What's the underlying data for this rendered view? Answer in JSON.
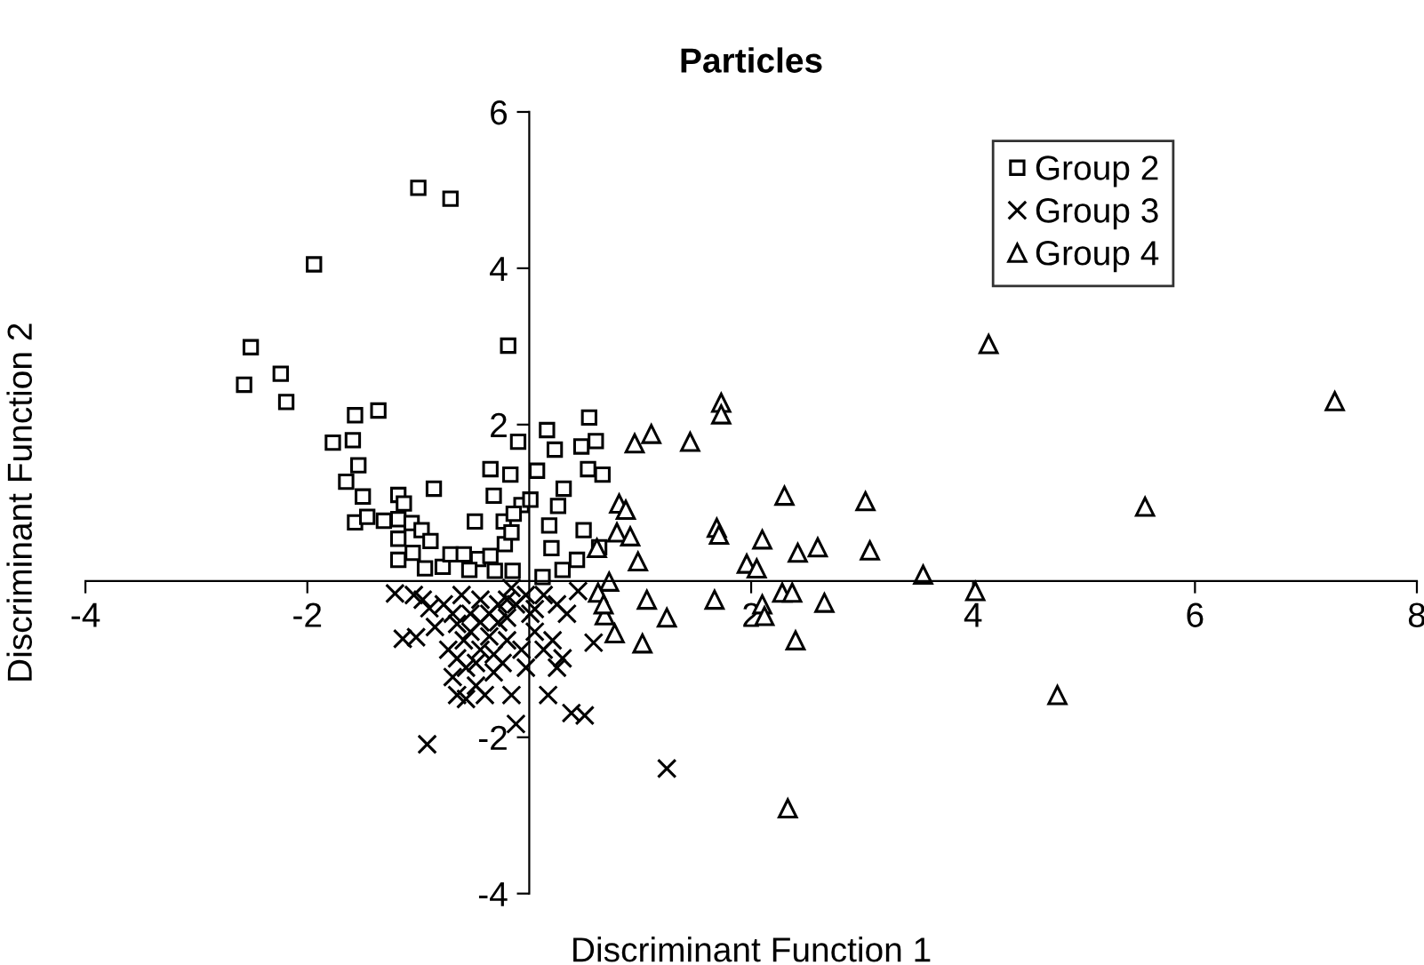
{
  "chart_data": {
    "type": "scatter",
    "title": "Particles",
    "xlabel": "Discriminant Function 1",
    "ylabel": "Discriminant Function 2",
    "xlim": [
      -4,
      8
    ],
    "ylim": [
      -4,
      6
    ],
    "xticks": [
      -4,
      -2,
      2,
      4,
      6,
      8
    ],
    "yticks": [
      -4,
      -2,
      2,
      4,
      6
    ],
    "grid": false,
    "legend": "top right",
    "series": [
      {
        "name": "Group 2",
        "color": "#000000",
        "marker": "square",
        "x": [
          -1.0,
          -0.71,
          -1.94,
          -2.51,
          -2.57,
          -2.24,
          -2.19,
          -0.19,
          -1.57,
          -1.36,
          -1.77,
          -1.59,
          -1.54,
          -1.65,
          -1.5,
          -1.57,
          -1.46,
          -1.31,
          -1.18,
          -1.13,
          -0.86,
          -1.18,
          -1.06,
          -1.18,
          -0.97,
          -0.89,
          -1.18,
          -1.05,
          -0.94,
          -0.78,
          -0.71,
          -0.59,
          -0.46,
          -0.35,
          -0.54,
          -0.31,
          -0.15,
          -0.49,
          -0.35,
          -0.32,
          -0.23,
          -0.22,
          -0.17,
          -0.1,
          -0.07,
          -0.16,
          -0.14,
          0.01,
          0.07,
          0.16,
          0.23,
          0.18,
          0.2,
          0.26,
          0.31,
          0.47,
          0.54,
          0.6,
          0.53,
          0.66,
          0.49,
          0.43,
          0.3,
          0.12,
          0.63
        ],
        "values": [
          5.03,
          4.89,
          4.05,
          2.99,
          2.51,
          2.65,
          2.29,
          3.01,
          2.12,
          2.18,
          1.77,
          1.8,
          1.48,
          1.27,
          1.08,
          0.75,
          0.82,
          0.77,
          1.1,
          0.99,
          1.18,
          0.79,
          0.74,
          0.54,
          0.65,
          0.51,
          0.27,
          0.36,
          0.16,
          0.18,
          0.34,
          0.34,
          0.28,
          0.32,
          0.14,
          0.13,
          0.13,
          0.76,
          1.43,
          1.09,
          0.76,
          0.47,
          1.36,
          1.78,
          0.97,
          0.62,
          0.86,
          1.04,
          1.41,
          1.93,
          1.68,
          0.71,
          0.42,
          0.96,
          1.18,
          1.72,
          2.09,
          1.79,
          1.43,
          1.36,
          0.65,
          0.27,
          0.14,
          0.05,
          0.43
        ]
      },
      {
        "name": "Group 3",
        "color": "#000000",
        "marker": "cross",
        "x": [
          -1.21,
          -1.14,
          -1.02,
          -1.04,
          -0.96,
          -0.9,
          -0.77,
          -0.69,
          -0.65,
          -0.53,
          -0.44,
          -0.36,
          -0.28,
          -0.2,
          -0.12,
          -0.03,
          0.13,
          0.25,
          0.34,
          0.44,
          0.21,
          0.3,
          0.17,
          0.38,
          0.5,
          1.24,
          -0.92,
          -0.12,
          -0.16,
          -0.57,
          -0.48,
          -0.32,
          -0.24,
          -0.73,
          -0.65,
          -0.59,
          -0.44,
          -0.36,
          -0.2,
          -0.07,
          0.05,
          0.13,
          -0.03,
          -0.53,
          -0.28,
          -0.57,
          -0.4,
          -0.69,
          0.58,
          0.01,
          -0.85,
          -0.61,
          -0.44,
          -0.16,
          0.05,
          -0.32,
          -0.48,
          -0.2,
          0.25,
          -0.65
        ],
        "values": [
          -0.16,
          -0.74,
          -0.72,
          -0.18,
          -0.24,
          -0.35,
          -0.3,
          -0.42,
          -0.55,
          -0.42,
          -0.53,
          -0.42,
          -0.3,
          -0.24,
          -0.3,
          -0.18,
          -0.18,
          -0.3,
          -0.42,
          -0.13,
          -0.76,
          -0.99,
          -1.46,
          -1.69,
          -1.72,
          -2.4,
          -2.09,
          -1.83,
          -1.46,
          -1.51,
          -1.34,
          -1.17,
          -1.05,
          -0.88,
          -0.99,
          -0.76,
          -0.88,
          -0.71,
          -0.76,
          -0.88,
          -0.65,
          -0.88,
          -1.11,
          -0.65,
          -0.53,
          -1.11,
          -1.46,
          -1.23,
          -0.79,
          -0.42,
          -0.59,
          -0.18,
          -0.24,
          -0.09,
          -0.36,
          -0.94,
          -1.05,
          -0.47,
          -1.11,
          -1.46
        ]
      },
      {
        "name": "Group 4",
        "color": "#000000",
        "marker": "triangle",
        "x": [
          4.14,
          7.26,
          5.55,
          4.76,
          2.33,
          4.02,
          3.55,
          3.03,
          3.07,
          2.66,
          2.6,
          2.42,
          2.3,
          2.1,
          2.1,
          2.12,
          2.28,
          2.37,
          2.4,
          1.96,
          2.05,
          1.67,
          1.69,
          1.71,
          1.73,
          1.73,
          1.45,
          1.1,
          0.95,
          0.81,
          0.87,
          0.79,
          0.91,
          0.98,
          0.61,
          0.72,
          0.62,
          0.68,
          0.77,
          1.02,
          1.06,
          1.24,
          0.67
        ],
        "values": [
          3.03,
          2.3,
          0.95,
          -1.46,
          -2.91,
          -0.13,
          0.08,
          1.02,
          0.39,
          -0.28,
          0.43,
          0.36,
          1.09,
          0.53,
          -0.3,
          -0.45,
          -0.15,
          -0.15,
          -0.76,
          0.22,
          0.16,
          -0.24,
          0.68,
          0.59,
          2.28,
          2.13,
          1.78,
          1.88,
          1.76,
          0.99,
          0.91,
          0.62,
          0.57,
          0.25,
          0.42,
          -0.01,
          -0.15,
          -0.44,
          -0.67,
          -0.8,
          -0.24,
          -0.47,
          -0.3
        ]
      }
    ]
  }
}
